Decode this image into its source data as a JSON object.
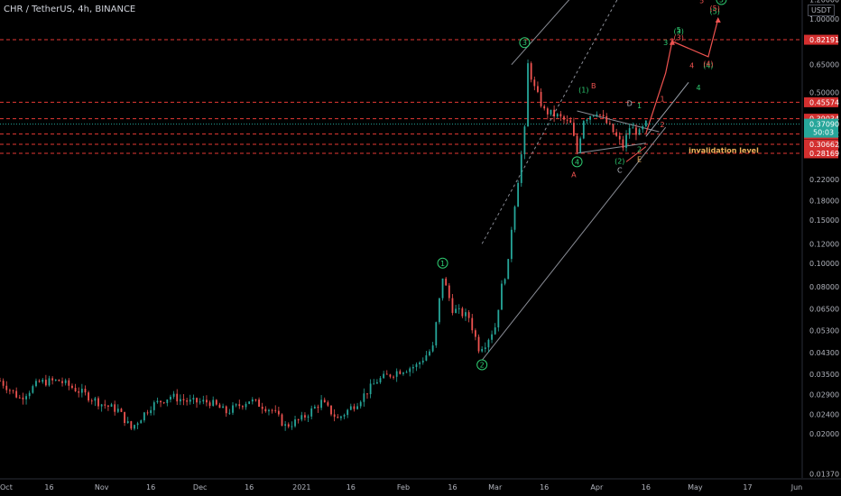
{
  "header": {
    "title": "CHR / TetherUS, 4h, BINANCE",
    "currency": "USDT"
  },
  "colors": {
    "background": "#000000",
    "up": "#26a69a",
    "down": "#ef5350",
    "axis_text": "#b2b5be",
    "red_line": "#e53935",
    "green_wave": "#2ecc71",
    "red_wave": "#ef5350",
    "orange_text": "#f0b35a",
    "teal_badge": "#26a69a"
  },
  "chart_data": {
    "type": "candlestick",
    "y_scale": "log",
    "y_ticks": [
      "1.20000",
      "1.00000",
      "0.65000",
      "0.50000",
      "0.30000",
      "0.22000",
      "0.18000",
      "0.15000",
      "0.12000",
      "0.10000",
      "0.08000",
      "0.06500",
      "0.05300",
      "0.04300",
      "0.03500",
      "0.02900",
      "0.02400",
      "0.02000",
      "0.01370"
    ],
    "x_ticks": [
      "Oct",
      "16",
      "Nov",
      "16",
      "Dec",
      "16",
      "2021",
      "16",
      "Feb",
      "16",
      "Mar",
      "16",
      "Apr",
      "16",
      "May",
      "17",
      "Jun"
    ],
    "x_tick_dates": [
      "2020-10-01",
      "2020-10-16",
      "2020-11-01",
      "2020-11-16",
      "2020-12-01",
      "2020-12-16",
      "2021-01-01",
      "2021-01-16",
      "2021-02-01",
      "2021-02-16",
      "2021-03-01",
      "2021-03-16",
      "2021-04-01",
      "2021-04-16",
      "2021-05-01",
      "2021-05-17",
      "2021-06-01"
    ],
    "price_points": [
      [
        "2020-10-01",
        0.033
      ],
      [
        "2020-10-07",
        0.028
      ],
      [
        "2020-10-13",
        0.0325
      ],
      [
        "2020-10-19",
        0.033
      ],
      [
        "2020-10-25",
        0.03
      ],
      [
        "2020-11-01",
        0.0265
      ],
      [
        "2020-11-06",
        0.025
      ],
      [
        "2020-11-10",
        0.021
      ],
      [
        "2020-11-16",
        0.026
      ],
      [
        "2020-11-22",
        0.0285
      ],
      [
        "2020-11-28",
        0.027
      ],
      [
        "2020-12-04",
        0.027
      ],
      [
        "2020-12-09",
        0.0245
      ],
      [
        "2020-12-16",
        0.0275
      ],
      [
        "2020-12-23",
        0.025
      ],
      [
        "2020-12-27",
        0.0215
      ],
      [
        "2021-01-01",
        0.023
      ],
      [
        "2021-01-07",
        0.027
      ],
      [
        "2021-01-12",
        0.023
      ],
      [
        "2021-01-18",
        0.027
      ],
      [
        "2021-01-24",
        0.033
      ],
      [
        "2021-01-30",
        0.036
      ],
      [
        "2021-02-05",
        0.038
      ],
      [
        "2021-02-10",
        0.045
      ],
      [
        "2021-02-13",
        0.088
      ],
      [
        "2021-02-16",
        0.065
      ],
      [
        "2021-02-21",
        0.06
      ],
      [
        "2021-02-24",
        0.045
      ],
      [
        "2021-02-26",
        0.047
      ],
      [
        "2021-03-01",
        0.055
      ],
      [
        "2021-03-03",
        0.08
      ],
      [
        "2021-03-05",
        0.1
      ],
      [
        "2021-03-06",
        0.14
      ],
      [
        "2021-03-08",
        0.22
      ],
      [
        "2021-03-10",
        0.35
      ],
      [
        "2021-03-11",
        0.65
      ],
      [
        "2021-03-13",
        0.52
      ],
      [
        "2021-03-16",
        0.42
      ],
      [
        "2021-03-20",
        0.4
      ],
      [
        "2021-03-24",
        0.37
      ],
      [
        "2021-03-26",
        0.285
      ],
      [
        "2021-03-28",
        0.39
      ],
      [
        "2021-04-01",
        0.42
      ],
      [
        "2021-04-05",
        0.36
      ],
      [
        "2021-04-09",
        0.3
      ],
      [
        "2021-04-11",
        0.36
      ],
      [
        "2021-04-14",
        0.34
      ],
      [
        "2021-04-16",
        0.3709
      ]
    ],
    "last_price": "0.37090",
    "countdown": "50:03",
    "horizontal_levels": [
      "0.82191",
      "0.45574",
      "0.39034",
      "0.33782",
      "0.30662",
      "0.28169"
    ],
    "invalidation_label": "invalidation level",
    "wave_labels_green_circled": [
      "1",
      "2",
      "3",
      "4",
      "5"
    ],
    "wave_labels_green_paren": [
      "(1)",
      "(2)",
      "(3)",
      "(4)",
      "(5)"
    ],
    "wave_labels_red_paren": [
      "(3)",
      "(4)",
      "(5)"
    ],
    "sub_wave_labels": [
      "A",
      "B",
      "C",
      "D",
      "E",
      "1",
      "2",
      "3",
      "3",
      "4",
      "4",
      "5",
      "5",
      "1",
      "2"
    ]
  }
}
